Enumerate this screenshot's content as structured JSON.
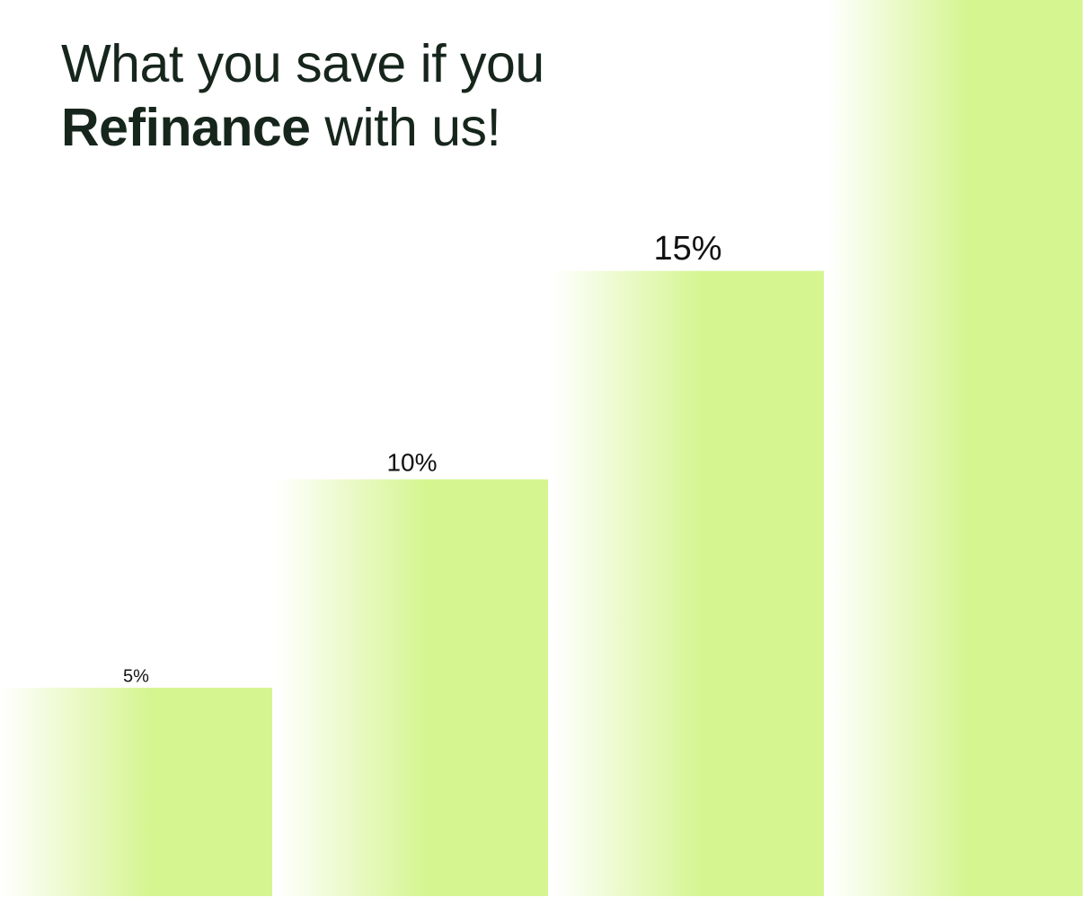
{
  "title": {
    "line1": "What you save if you",
    "line2_bold": "Refinance",
    "line2_rest": " with us!"
  },
  "colors": {
    "bar_light": "#ffffff",
    "bar_dark": "#d5f591",
    "text": "#17261c"
  },
  "chart_data": {
    "type": "bar",
    "title": "What you save if you Refinance with us!",
    "categories": [
      "",
      "",
      "",
      ""
    ],
    "values": [
      5,
      10,
      15,
      21.5
    ],
    "labels": [
      "5%",
      "10%",
      "15%",
      ""
    ],
    "ylim": [
      0,
      21.5
    ],
    "grid": false,
    "legend": "none"
  }
}
